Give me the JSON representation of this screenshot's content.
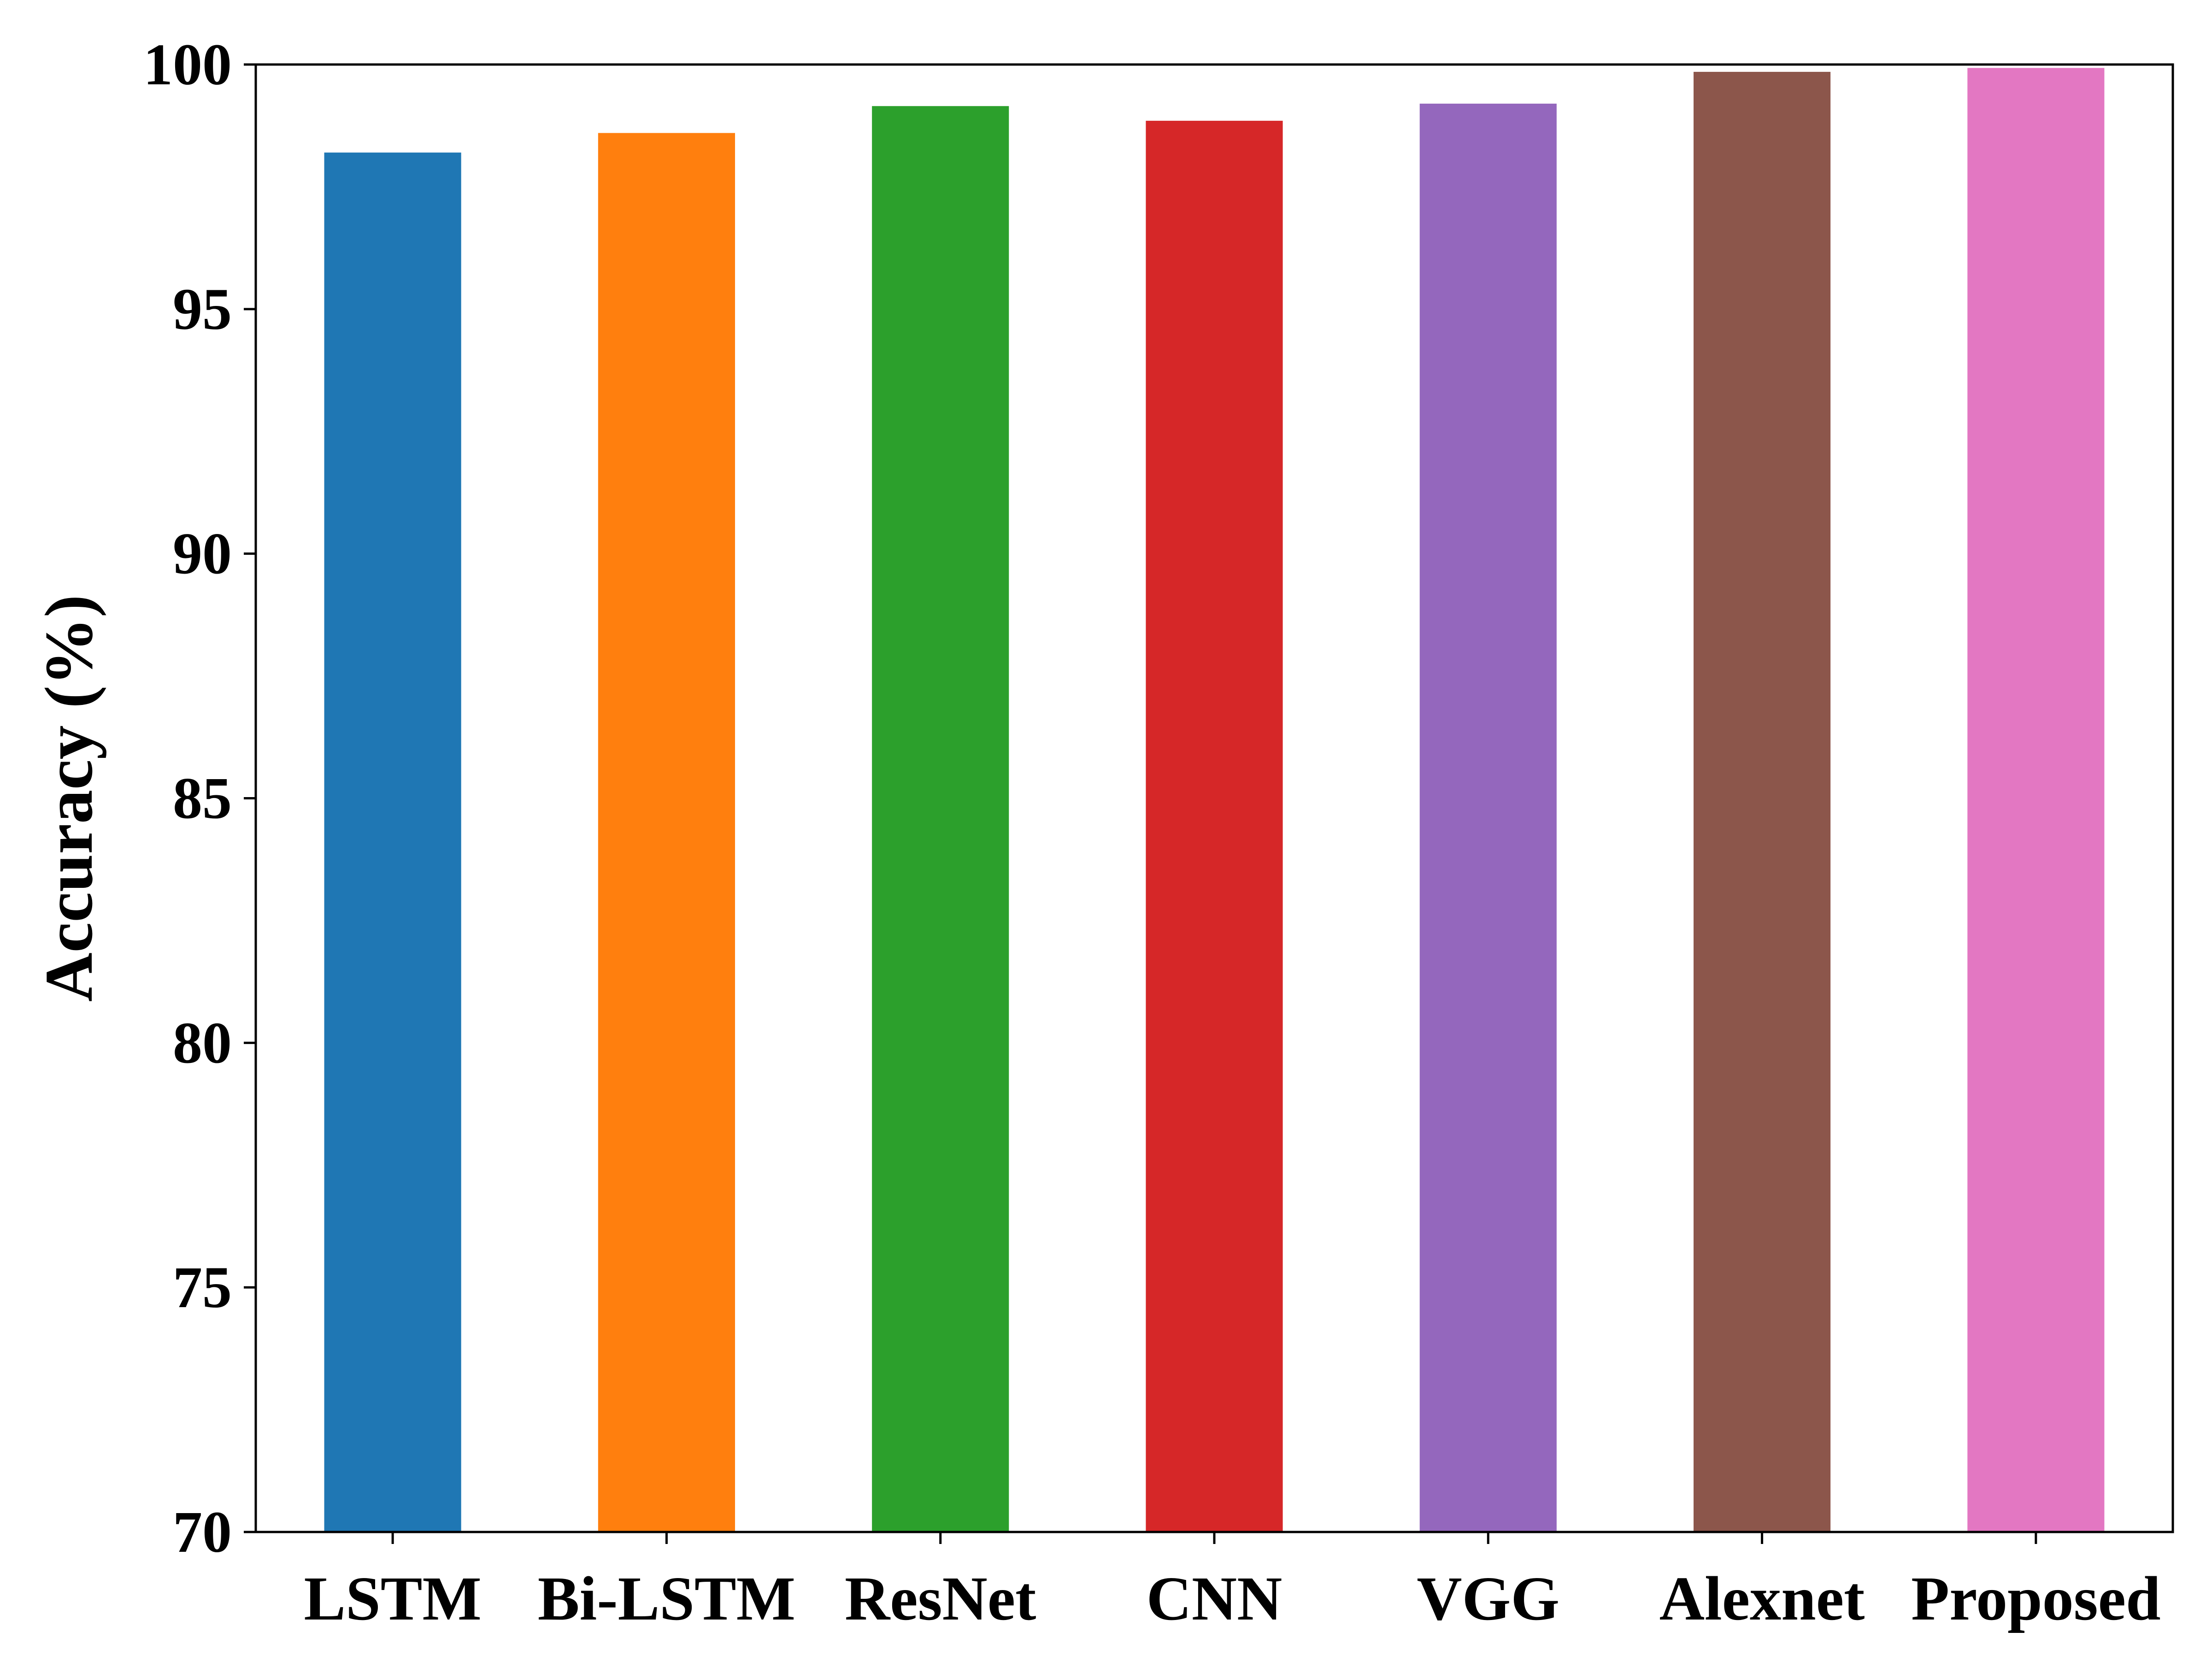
{
  "chart_data": {
    "type": "bar",
    "title": "",
    "xlabel": "",
    "ylabel": "Accuracy (%)",
    "categories": [
      "LSTM",
      "Bi-LSTM",
      "ResNet",
      "CNN",
      "VGG",
      "Alexnet",
      "Proposed"
    ],
    "values": [
      98.2,
      98.6,
      99.15,
      98.85,
      99.2,
      99.85,
      99.93
    ],
    "colors": [
      "#1f77b4",
      "#ff7f0e",
      "#2ca02c",
      "#d62728",
      "#9467bd",
      "#8c564b",
      "#e377c2"
    ],
    "ylim": [
      70,
      100
    ],
    "yticks": [
      70,
      75,
      80,
      85,
      90,
      95,
      100
    ],
    "ytick_labels": [
      "70",
      "75",
      "80",
      "85",
      "90",
      "95",
      "100"
    ],
    "grid": false,
    "legend": "none"
  }
}
